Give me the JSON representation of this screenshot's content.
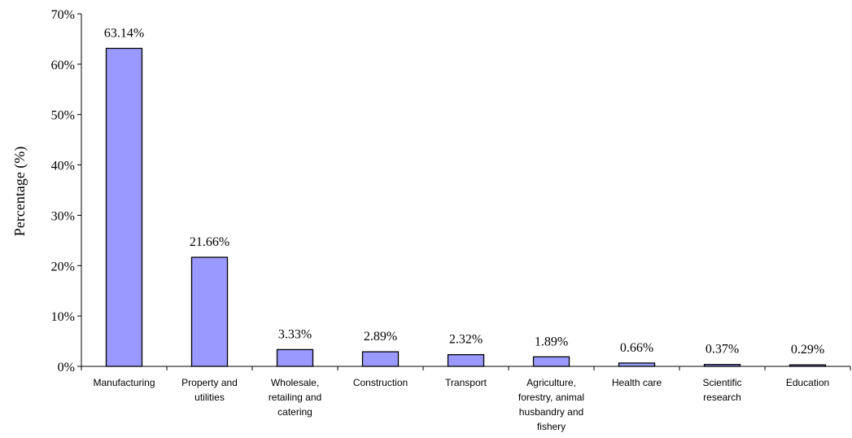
{
  "chart_data": {
    "type": "bar",
    "ylabel": "Percentage (%)",
    "xlabel": "",
    "ylim": [
      0,
      70
    ],
    "yticks": [
      0,
      10,
      20,
      30,
      40,
      50,
      60,
      70
    ],
    "ytick_labels": [
      "0%",
      "10%",
      "20%",
      "30%",
      "40%",
      "50%",
      "60%",
      "70%"
    ],
    "categories": [
      [
        "Manufacturing"
      ],
      [
        "Property and",
        "utilities"
      ],
      [
        "Wholesale,",
        "retailing and",
        "catering"
      ],
      [
        "Construction"
      ],
      [
        "Transport"
      ],
      [
        "Agriculture,",
        "forestry, animal",
        "husbandry and",
        "fishery"
      ],
      [
        "Health care"
      ],
      [
        "Scientific",
        "research"
      ],
      [
        "Education"
      ]
    ],
    "values": [
      63.14,
      21.66,
      3.33,
      2.89,
      2.32,
      1.89,
      0.66,
      0.37,
      0.29
    ],
    "data_labels": [
      "63.14%",
      "21.66%",
      "3.33%",
      "2.89%",
      "2.32%",
      "1.89%",
      "0.66%",
      "0.37%",
      "0.29%"
    ],
    "bar_color": "#9999ff",
    "grid": false,
    "legend": "none"
  }
}
